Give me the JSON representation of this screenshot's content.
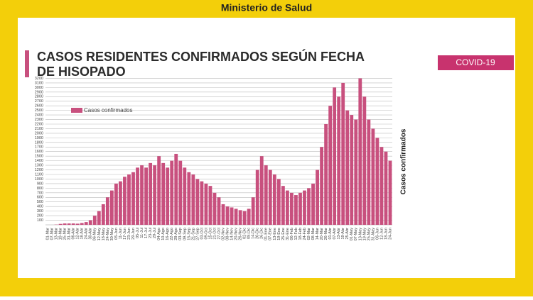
{
  "header": {
    "title": "Ministerio de Salud",
    "badge": "COVID-19"
  },
  "chart_data": {
    "type": "bar",
    "title_lines": [
      "CASOS RESIDENTES CONFIRMADOS SEGÚN FECHA",
      "DE HISOPADO"
    ],
    "y_label": "Casos confirmados",
    "legend": "right-side-label",
    "series": [
      {
        "name": "Casos confirmados",
        "color": "#c8507e",
        "values": [
          0,
          0,
          5,
          20,
          30,
          30,
          30,
          25,
          40,
          60,
          100,
          200,
          300,
          450,
          600,
          750,
          900,
          950,
          1050,
          1100,
          1150,
          1250,
          1300,
          1250,
          1350,
          1300,
          1500,
          1350,
          1250,
          1400,
          1550,
          1400,
          1250,
          1150,
          1100,
          1000,
          950,
          900,
          850,
          700,
          600,
          450,
          400,
          380,
          350,
          320,
          300,
          350,
          600,
          1200,
          1500,
          1300,
          1200,
          1100,
          1000,
          850,
          750,
          700,
          650,
          700,
          750,
          800,
          900,
          1200,
          1700,
          2200,
          2600,
          3000,
          2800,
          3100,
          2500,
          2400,
          2300,
          3200,
          2800,
          2300,
          2100,
          1900,
          1700,
          1600,
          1400
        ]
      }
    ],
    "categories": [
      "01-Mar",
      "07-Mar",
      "13-Mar",
      "19-Mar",
      "25-Mar",
      "31-Mar",
      "06-Abr",
      "12-Abr",
      "18-Abr",
      "24-Abr",
      "30-Abr",
      "06-May",
      "12-May",
      "18-May",
      "24-May",
      "30-May",
      "05-Jun",
      "11-Jun",
      "17-Jun",
      "23-Jun",
      "29-Jun",
      "05-Jul",
      "11-Jul",
      "17-Jul",
      "23-Jul",
      "29-Jul",
      "04-Ago",
      "10-Ago",
      "16-Ago",
      "22-Ago",
      "28-Ago",
      "03-Sep",
      "09-Sep",
      "15-Sep",
      "21-Sep",
      "27-Sep",
      "03-Oct",
      "09-Oct",
      "15-Oct",
      "21-Oct",
      "27-Oct",
      "02-Nov",
      "08-Nov",
      "14-Nov",
      "20-Nov",
      "26-Nov",
      "02-Dic",
      "08-Dic",
      "14-Dic",
      "20-Dic",
      "26-Dic",
      "01-Ene",
      "07-Ene",
      "13-Ene",
      "19-Ene",
      "25-Ene",
      "31-Ene",
      "06-Feb",
      "12-Feb",
      "18-Feb",
      "24-Feb",
      "02-Mar",
      "08-Mar",
      "14-Mar",
      "20-Mar",
      "26-Mar",
      "01-Abr",
      "07-Abr",
      "13-Abr",
      "19-Abr",
      "25-Abr",
      "01-May",
      "07-May",
      "13-May",
      "19-May",
      "25-May",
      "31-May",
      "06-Jun",
      "12-Jun",
      "18-Jun",
      "24-Jun"
    ],
    "ylim": [
      0,
      3300
    ],
    "yticks": [
      100,
      200,
      300,
      400,
      500,
      600,
      700,
      800,
      900,
      1000,
      1100,
      1200,
      1300,
      1400,
      1500,
      1600,
      1700,
      1800,
      1900,
      2000,
      2100,
      2200,
      2300,
      2400,
      2500,
      2600,
      2700,
      2800,
      2900,
      3000,
      3100,
      3200
    ],
    "grid": true
  }
}
